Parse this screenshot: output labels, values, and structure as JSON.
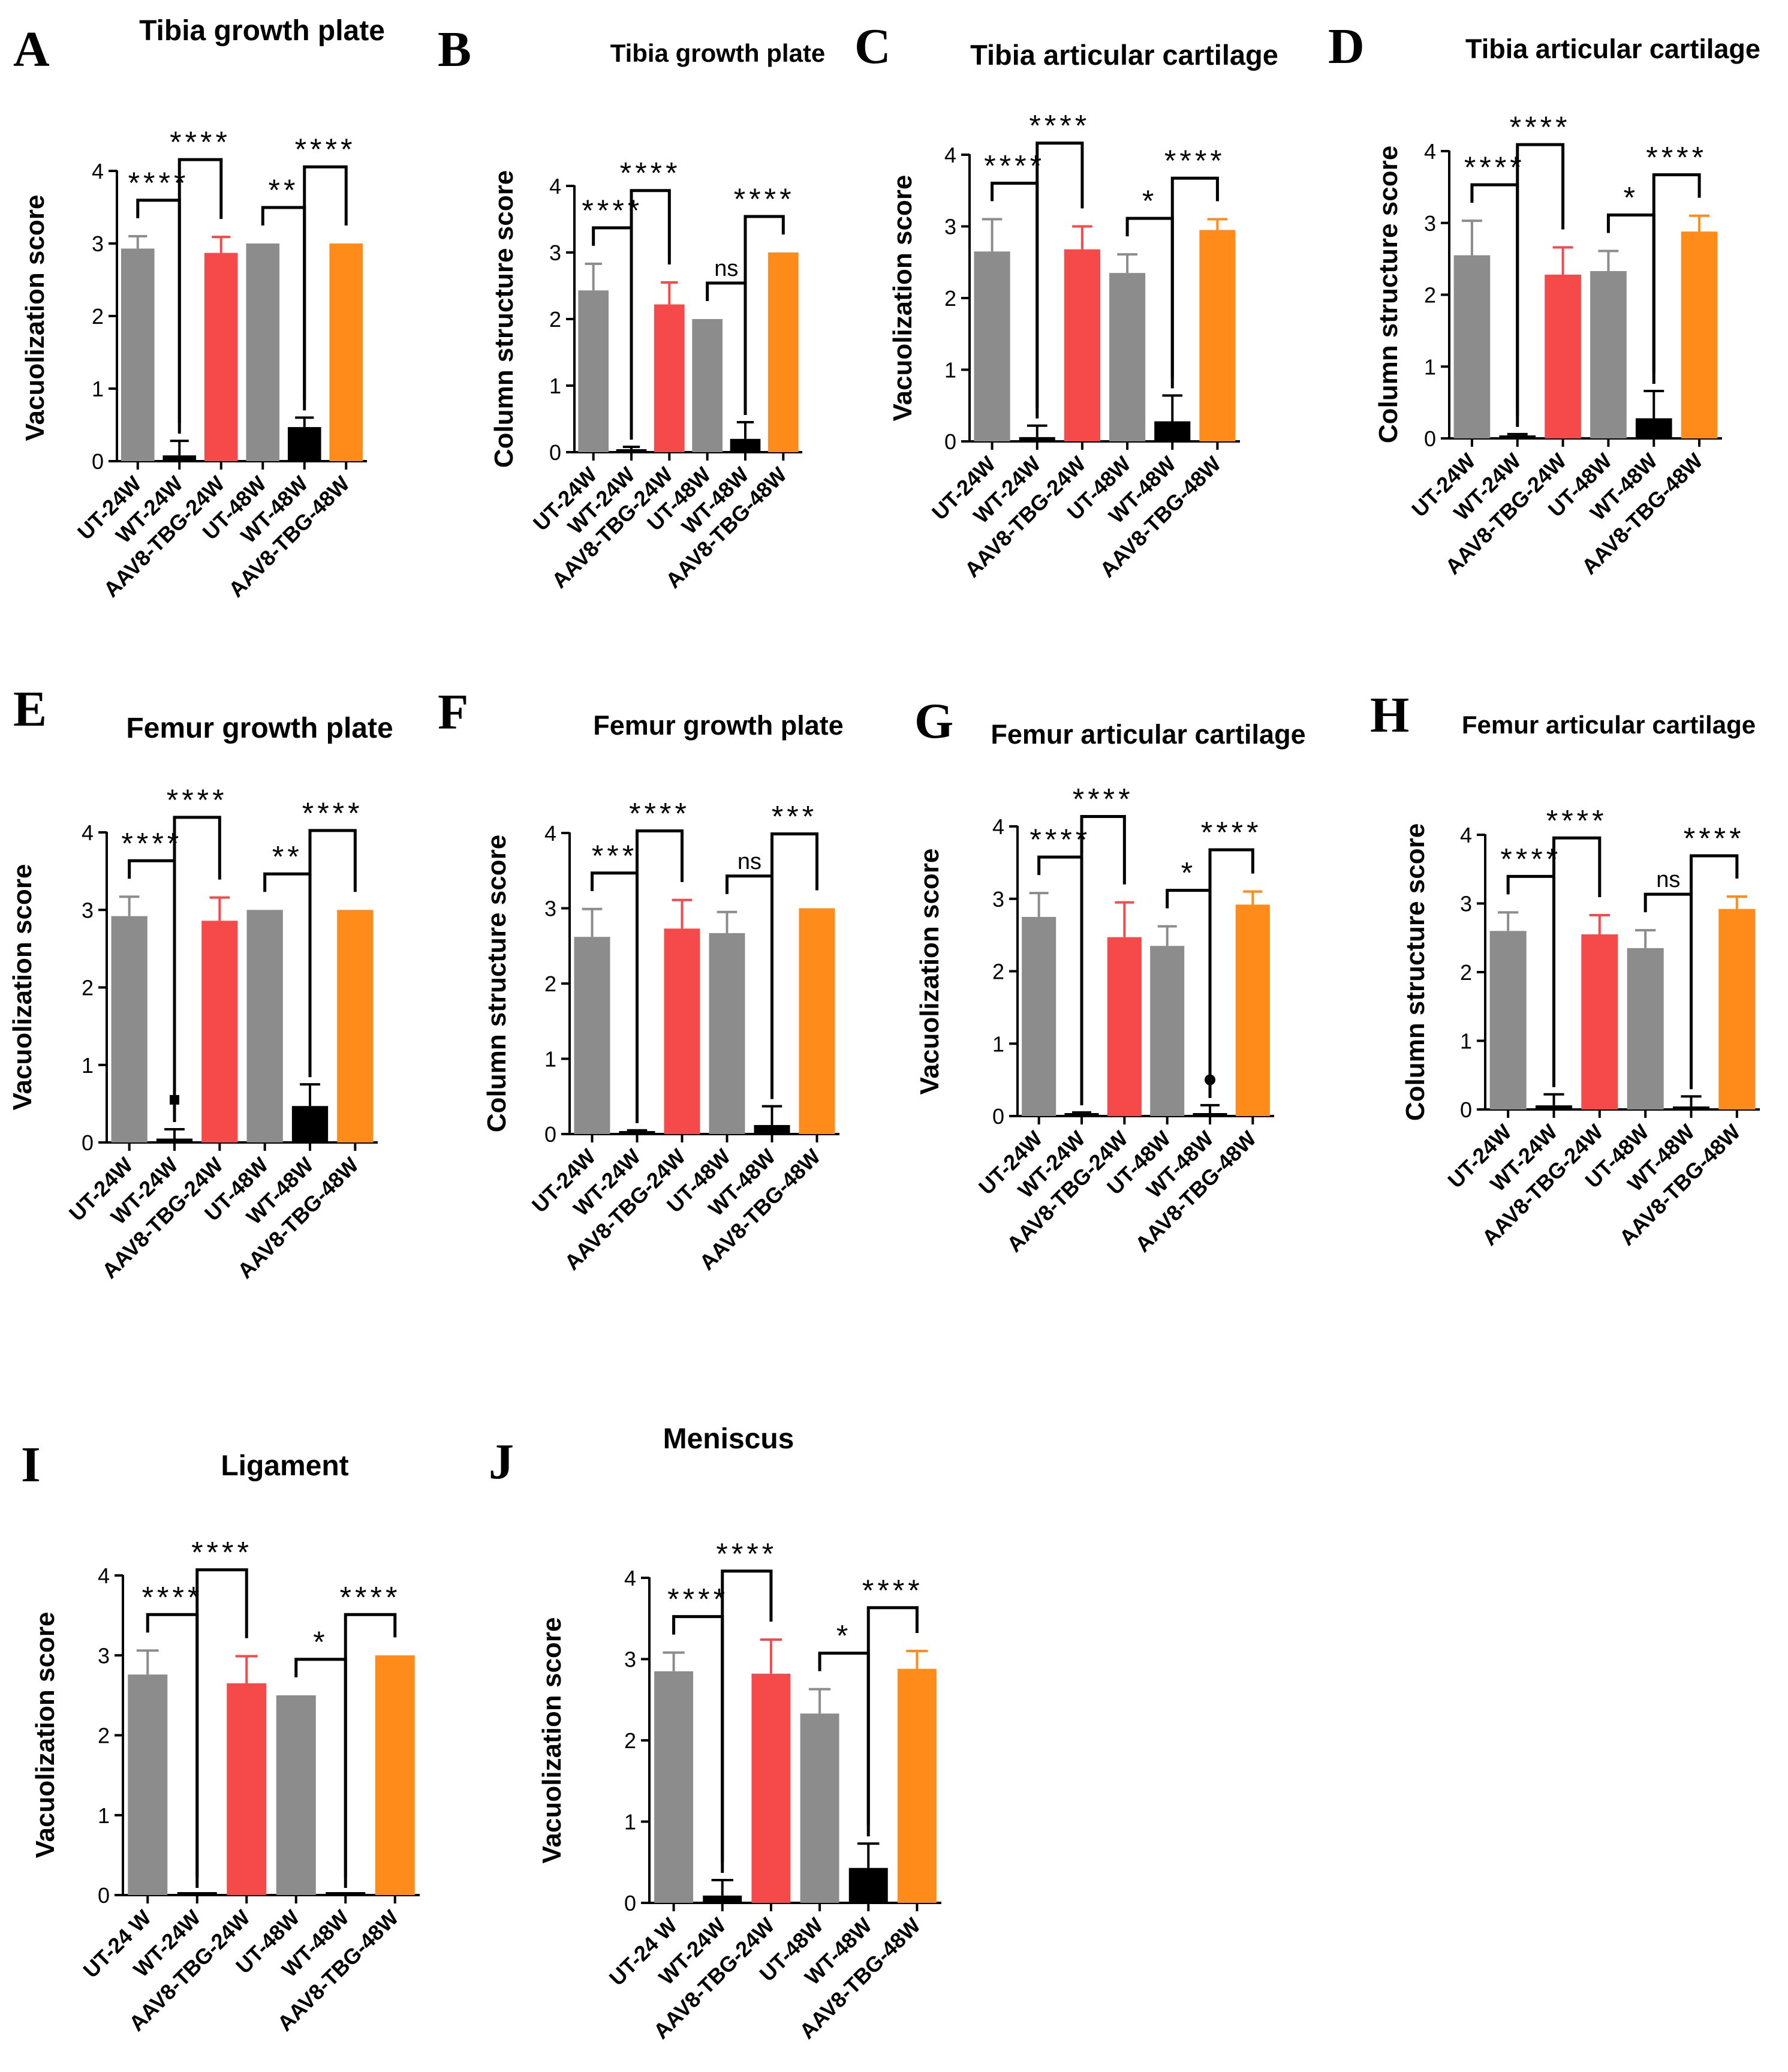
{
  "figure": {
    "colors": {
      "UT": "#8c8c8c",
      "WT": "#000000",
      "AAV_24": "#f64a4a",
      "AAV_48": "#ff8c1a",
      "axis": "#000000"
    }
  },
  "chart_data": [
    {
      "type": "bar",
      "letter": "A",
      "title": "Tibia growth plate",
      "ylabel": "Vacuolization score",
      "ylim": [
        0,
        4
      ],
      "yticks": [
        "0",
        "1",
        "2",
        "3",
        "4"
      ],
      "categories": [
        "UT-24W",
        "WT-24W",
        "AAV8-TBG-24W",
        "UT-48W",
        "WT-48W",
        "AAV8-TBG-48W"
      ],
      "values": [
        2.93,
        0.08,
        2.87,
        3.0,
        0.47,
        3.0
      ],
      "errors": [
        0.17,
        0.2,
        0.22,
        0.0,
        0.13,
        0.0
      ],
      "colors": [
        "UT",
        "WT",
        "AAV_24",
        "UT",
        "WT",
        "AAV_48"
      ],
      "comparisons": [
        {
          "from": 0,
          "to": 1,
          "label": "****"
        },
        {
          "from": 1,
          "to": 2,
          "label": "****"
        },
        {
          "from": 3,
          "to": 4,
          "label": "**"
        },
        {
          "from": 4,
          "to": 5,
          "label": "****"
        }
      ],
      "outliers": []
    },
    {
      "type": "bar",
      "letter": "B",
      "title": "Tibia growth plate",
      "ylabel": "Column structure score",
      "ylim": [
        0,
        4
      ],
      "yticks": [
        "0",
        "1",
        "2",
        "3",
        "4"
      ],
      "categories": [
        "UT-24W",
        "WT-24W",
        "AAV8-TBG-24W",
        "UT-48W",
        "WT-48W",
        "AAV8-TBG-48W"
      ],
      "values": [
        2.43,
        0.03,
        2.22,
        2.0,
        0.2,
        3.0
      ],
      "errors": [
        0.4,
        0.05,
        0.33,
        0.0,
        0.25,
        0.0
      ],
      "colors": [
        "UT",
        "WT",
        "AAV_24",
        "UT",
        "WT",
        "AAV_48"
      ],
      "comparisons": [
        {
          "from": 0,
          "to": 1,
          "label": "****"
        },
        {
          "from": 1,
          "to": 2,
          "label": "****"
        },
        {
          "from": 3,
          "to": 4,
          "label": "ns"
        },
        {
          "from": 4,
          "to": 5,
          "label": "****"
        }
      ],
      "outliers": []
    },
    {
      "type": "bar",
      "letter": "C",
      "title": "Tibia articular cartilage",
      "ylabel": "Vacuolization score",
      "ylim": [
        0,
        4
      ],
      "yticks": [
        "0",
        "1",
        "2",
        "3",
        "4"
      ],
      "categories": [
        "UT-24W",
        "WT-24W",
        "AAV8-TBG-24W",
        "UT-48W",
        "WT-48W",
        "AAV8-TBG-48W"
      ],
      "values": [
        2.65,
        0.06,
        2.68,
        2.35,
        0.28,
        2.95
      ],
      "errors": [
        0.45,
        0.16,
        0.32,
        0.26,
        0.36,
        0.15
      ],
      "colors": [
        "UT",
        "WT",
        "AAV_24",
        "UT",
        "WT",
        "AAV_48"
      ],
      "comparisons": [
        {
          "from": 0,
          "to": 1,
          "label": "****"
        },
        {
          "from": 1,
          "to": 2,
          "label": "****"
        },
        {
          "from": 3,
          "to": 4,
          "label": "*"
        },
        {
          "from": 4,
          "to": 5,
          "label": "****"
        }
      ],
      "outliers": []
    },
    {
      "type": "bar",
      "letter": "D",
      "title": "Tibia articular cartilage",
      "ylabel": "Column structure score",
      "ylim": [
        0,
        4
      ],
      "yticks": [
        "0",
        "1",
        "2",
        "3",
        "4"
      ],
      "categories": [
        "UT-24W",
        "WT-24W",
        "AAV8-TBG-24W",
        "UT-48W",
        "WT-48W",
        "AAV8-TBG-48W"
      ],
      "values": [
        2.55,
        0.03,
        2.28,
        2.33,
        0.28,
        2.88
      ],
      "errors": [
        0.48,
        0.03,
        0.38,
        0.28,
        0.38,
        0.22
      ],
      "colors": [
        "UT",
        "WT",
        "AAV_24",
        "UT",
        "WT",
        "AAV_48"
      ],
      "comparisons": [
        {
          "from": 0,
          "to": 1,
          "label": "****"
        },
        {
          "from": 1,
          "to": 2,
          "label": "****"
        },
        {
          "from": 3,
          "to": 4,
          "label": "*"
        },
        {
          "from": 4,
          "to": 5,
          "label": "****"
        }
      ],
      "outliers": []
    },
    {
      "type": "bar",
      "letter": "E",
      "title": "Femur growth plate",
      "ylabel": "Vacuolization score",
      "ylim": [
        0,
        4
      ],
      "yticks": [
        "0",
        "1",
        "2",
        "3",
        "4"
      ],
      "categories": [
        "UT-24W",
        "WT-24W",
        "AAV8-TBG-24W",
        "UT-48W",
        "WT-48W",
        "AAV8-TBG-48W"
      ],
      "values": [
        2.92,
        0.05,
        2.86,
        3.0,
        0.47,
        3.0
      ],
      "errors": [
        0.25,
        0.12,
        0.3,
        0.0,
        0.28,
        0.0
      ],
      "colors": [
        "UT",
        "WT",
        "AAV_24",
        "UT",
        "WT",
        "AAV_48"
      ],
      "comparisons": [
        {
          "from": 0,
          "to": 1,
          "label": "****"
        },
        {
          "from": 1,
          "to": 2,
          "label": "****"
        },
        {
          "from": 3,
          "to": 4,
          "label": "**"
        },
        {
          "from": 4,
          "to": 5,
          "label": "****"
        }
      ],
      "outliers": [
        {
          "index": 1,
          "value": 0.55,
          "shape": "square"
        }
      ]
    },
    {
      "type": "bar",
      "letter": "F",
      "title": "Femur growth plate",
      "ylabel": "Column structure score",
      "ylim": [
        0,
        4
      ],
      "yticks": [
        "0",
        "1",
        "2",
        "3",
        "4"
      ],
      "categories": [
        "UT-24W",
        "WT-24W",
        "AAV8-TBG-24W",
        "UT-48W",
        "WT-48W",
        "AAV8-TBG-48W"
      ],
      "values": [
        2.62,
        0.03,
        2.73,
        2.67,
        0.12,
        3.0
      ],
      "errors": [
        0.37,
        0.02,
        0.38,
        0.28,
        0.25,
        0.0
      ],
      "colors": [
        "UT",
        "WT",
        "AAV_24",
        "UT",
        "WT",
        "AAV_48"
      ],
      "comparisons": [
        {
          "from": 0,
          "to": 1,
          "label": "***"
        },
        {
          "from": 1,
          "to": 2,
          "label": "****"
        },
        {
          "from": 3,
          "to": 4,
          "label": "ns"
        },
        {
          "from": 4,
          "to": 5,
          "label": "***"
        }
      ],
      "outliers": []
    },
    {
      "type": "bar",
      "letter": "G",
      "title": "Femur articular cartilage",
      "ylabel": "Vacuolization score",
      "ylim": [
        0,
        4
      ],
      "yticks": [
        "0",
        "1",
        "2",
        "3",
        "4"
      ],
      "categories": [
        "UT-24W",
        "WT-24W",
        "AAV8-TBG-24W",
        "UT-48W",
        "WT-48W",
        "AAV8-TBG-48W"
      ],
      "values": [
        2.75,
        0.03,
        2.47,
        2.35,
        0.03,
        2.92
      ],
      "errors": [
        0.33,
        0.02,
        0.48,
        0.27,
        0.12,
        0.18
      ],
      "colors": [
        "UT",
        "WT",
        "AAV_24",
        "UT",
        "WT",
        "AAV_48"
      ],
      "comparisons": [
        {
          "from": 0,
          "to": 1,
          "label": "****"
        },
        {
          "from": 1,
          "to": 2,
          "label": "****"
        },
        {
          "from": 3,
          "to": 4,
          "label": "*"
        },
        {
          "from": 4,
          "to": 5,
          "label": "****"
        }
      ],
      "outliers": [
        {
          "index": 4,
          "value": 0.5,
          "shape": "circle"
        }
      ]
    },
    {
      "type": "bar",
      "letter": "H",
      "title": "Femur articular cartilage",
      "ylabel": "Column structure score",
      "ylim": [
        0,
        4
      ],
      "yticks": [
        "0",
        "1",
        "2",
        "3",
        "4"
      ],
      "categories": [
        "UT-24W",
        "WT-24W",
        "AAV8-TBG-24W",
        "UT-48W",
        "WT-48W",
        "AAV8-TBG-48W"
      ],
      "values": [
        2.6,
        0.06,
        2.55,
        2.35,
        0.03,
        2.92
      ],
      "errors": [
        0.27,
        0.16,
        0.28,
        0.26,
        0.16,
        0.18
      ],
      "colors": [
        "UT",
        "WT",
        "AAV_24",
        "UT",
        "WT",
        "AAV_48"
      ],
      "comparisons": [
        {
          "from": 0,
          "to": 1,
          "label": "****"
        },
        {
          "from": 1,
          "to": 2,
          "label": "****"
        },
        {
          "from": 3,
          "to": 4,
          "label": "ns"
        },
        {
          "from": 4,
          "to": 5,
          "label": "****"
        }
      ],
      "outliers": []
    },
    {
      "type": "bar",
      "letter": "I",
      "title": "Ligament",
      "ylabel": "Vacuolization score",
      "ylim": [
        0,
        4
      ],
      "yticks": [
        "0",
        "1",
        "2",
        "3",
        "4"
      ],
      "categories": [
        "UT-24 W",
        "WT-24W",
        "AAV8-TBG-24W",
        "UT-48W",
        "WT-48W",
        "AAV8-TBG-48W"
      ],
      "values": [
        2.76,
        0.0,
        2.65,
        2.5,
        0.0,
        3.0
      ],
      "errors": [
        0.3,
        0.0,
        0.34,
        0.0,
        0.0,
        0.0
      ],
      "colors": [
        "UT",
        "WT",
        "AAV_24",
        "UT",
        "WT",
        "AAV_48"
      ],
      "comparisons": [
        {
          "from": 0,
          "to": 1,
          "label": "****"
        },
        {
          "from": 1,
          "to": 2,
          "label": "****"
        },
        {
          "from": 3,
          "to": 4,
          "label": "*"
        },
        {
          "from": 4,
          "to": 5,
          "label": "****"
        }
      ],
      "outliers": []
    },
    {
      "type": "bar",
      "letter": "J",
      "title": "Meniscus",
      "ylabel": "Vacuolization score",
      "ylim": [
        0,
        4
      ],
      "yticks": [
        "0",
        "1",
        "2",
        "3",
        "4"
      ],
      "categories": [
        "UT-24 W",
        "WT-24W",
        "AAV8-TBG-24W",
        "UT-48W",
        "WT-48W",
        "AAV8-TBG-48W"
      ],
      "values": [
        2.85,
        0.09,
        2.82,
        2.33,
        0.43,
        2.88
      ],
      "errors": [
        0.23,
        0.19,
        0.42,
        0.3,
        0.3,
        0.22
      ],
      "colors": [
        "UT",
        "WT",
        "AAV_24",
        "UT",
        "WT",
        "AAV_48"
      ],
      "comparisons": [
        {
          "from": 0,
          "to": 1,
          "label": "****"
        },
        {
          "from": 1,
          "to": 2,
          "label": "****"
        },
        {
          "from": 3,
          "to": 4,
          "label": "*"
        },
        {
          "from": 4,
          "to": 5,
          "label": "****"
        }
      ],
      "outliers": []
    }
  ]
}
